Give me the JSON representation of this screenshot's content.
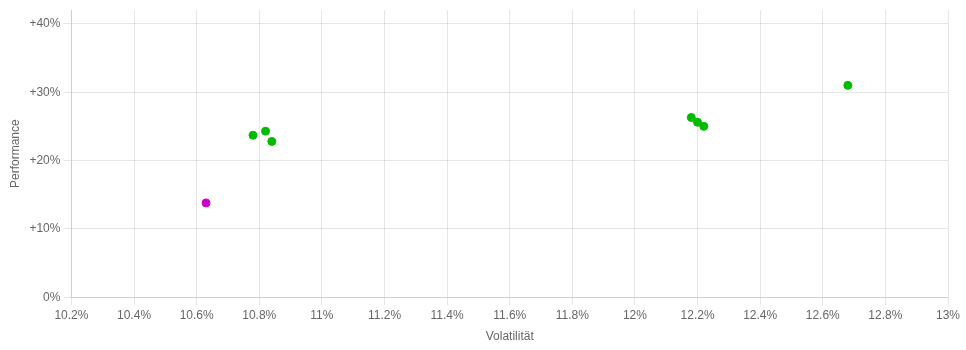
{
  "chart_data": {
    "type": "scatter",
    "xlabel": "Volatilität",
    "ylabel": "Performance",
    "xlim": [
      0.102,
      0.13
    ],
    "ylim": [
      0.0,
      0.42
    ],
    "xticks": [
      {
        "value": 0.102,
        "label": "10.2%"
      },
      {
        "value": 0.104,
        "label": "10.4%"
      },
      {
        "value": 0.106,
        "label": "10.6%"
      },
      {
        "value": 0.108,
        "label": "10.8%"
      },
      {
        "value": 0.11,
        "label": "11%"
      },
      {
        "value": 0.112,
        "label": "11.2%"
      },
      {
        "value": 0.114,
        "label": "11.4%"
      },
      {
        "value": 0.116,
        "label": "11.6%"
      },
      {
        "value": 0.118,
        "label": "11.8%"
      },
      {
        "value": 0.12,
        "label": "12%"
      },
      {
        "value": 0.122,
        "label": "12.2%"
      },
      {
        "value": 0.124,
        "label": "12.4%"
      },
      {
        "value": 0.126,
        "label": "12.6%"
      },
      {
        "value": 0.128,
        "label": "12.8%"
      },
      {
        "value": 0.13,
        "label": "13%"
      }
    ],
    "yticks": [
      {
        "value": 0.0,
        "label": "0%"
      },
      {
        "value": 0.1,
        "label": "+10%"
      },
      {
        "value": 0.2,
        "label": "+20%"
      },
      {
        "value": 0.3,
        "label": "+30%"
      },
      {
        "value": 0.4,
        "label": "+40%"
      }
    ],
    "grid": true,
    "series": [
      {
        "color": "#00bb00",
        "x": [
          0.1078,
          0.1082,
          0.1084,
          0.1218,
          0.122,
          0.1222,
          0.1268
        ],
        "values": [
          0.237,
          0.243,
          0.228,
          0.263,
          0.256,
          0.25,
          0.31
        ]
      },
      {
        "color": "#cc00cc",
        "x": [
          0.1063
        ],
        "values": [
          0.138
        ]
      }
    ]
  }
}
